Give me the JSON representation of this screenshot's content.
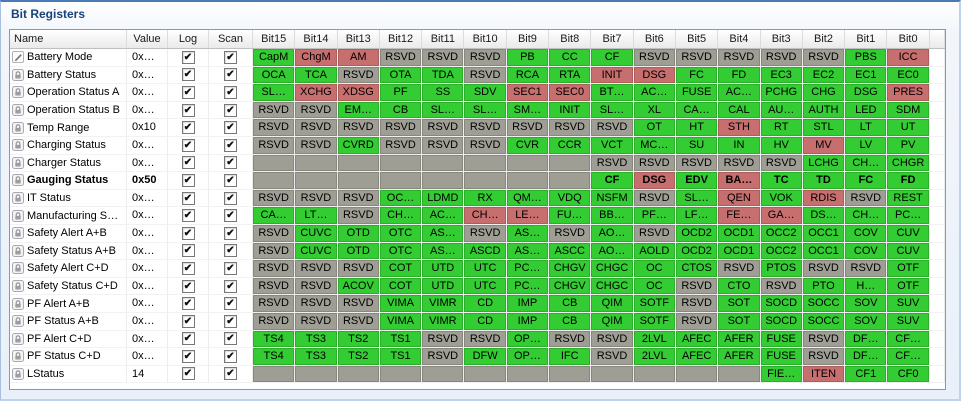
{
  "title": "Bit Registers",
  "colors": {
    "title_text": "#17427a",
    "bit_set": "#33cc33",
    "bit_alert": "#c76e6e",
    "bit_rsvd": "#9e9e94",
    "bit_empty": "#9e9e94"
  },
  "glyphs": {
    "check": "✔"
  },
  "columns": [
    "Name",
    "Value",
    "Log",
    "Scan",
    "Bit15",
    "Bit14",
    "Bit13",
    "Bit12",
    "Bit11",
    "Bit10",
    "Bit9",
    "Bit8",
    "Bit7",
    "Bit6",
    "Bit5",
    "Bit4",
    "Bit3",
    "Bit2",
    "Bit1",
    "Bit0"
  ],
  "rows": [
    {
      "name": "Battery Mode",
      "value": "0x…",
      "log": true,
      "scan": true,
      "icon": "pencil",
      "bold": false,
      "bits": [
        [
          "CapM",
          "g"
        ],
        [
          "ChgM",
          "r"
        ],
        [
          "AM",
          "r"
        ],
        [
          "RSVD",
          "y"
        ],
        [
          "RSVD",
          "y"
        ],
        [
          "RSVD",
          "y"
        ],
        [
          "PB",
          "g"
        ],
        [
          "CC",
          "g"
        ],
        [
          "CF",
          "g"
        ],
        [
          "RSVD",
          "y"
        ],
        [
          "RSVD",
          "y"
        ],
        [
          "RSVD",
          "y"
        ],
        [
          "RSVD",
          "y"
        ],
        [
          "RSVD",
          "y"
        ],
        [
          "PBS",
          "g"
        ],
        [
          "ICC",
          "r"
        ]
      ]
    },
    {
      "name": "Battery Status",
      "value": "0x…",
      "log": true,
      "scan": true,
      "icon": "lock",
      "bold": false,
      "bits": [
        [
          "OCA",
          "g"
        ],
        [
          "TCA",
          "g"
        ],
        [
          "RSVD",
          "y"
        ],
        [
          "OTA",
          "g"
        ],
        [
          "TDA",
          "g"
        ],
        [
          "RSVD",
          "y"
        ],
        [
          "RCA",
          "g"
        ],
        [
          "RTA",
          "g"
        ],
        [
          "INIT",
          "r"
        ],
        [
          "DSG",
          "r"
        ],
        [
          "FC",
          "g"
        ],
        [
          "FD",
          "g"
        ],
        [
          "EC3",
          "g"
        ],
        [
          "EC2",
          "g"
        ],
        [
          "EC1",
          "g"
        ],
        [
          "EC0",
          "g"
        ]
      ]
    },
    {
      "name": "Operation Status A",
      "value": "0x…",
      "log": true,
      "scan": true,
      "icon": "lock",
      "bold": false,
      "bits": [
        [
          "SL…",
          "g"
        ],
        [
          "XCHG",
          "r"
        ],
        [
          "XDSG",
          "r"
        ],
        [
          "PF",
          "g"
        ],
        [
          "SS",
          "g"
        ],
        [
          "SDV",
          "g"
        ],
        [
          "SEC1",
          "r"
        ],
        [
          "SEC0",
          "r"
        ],
        [
          "BT…",
          "g"
        ],
        [
          "AC…",
          "g"
        ],
        [
          "FUSE",
          "g"
        ],
        [
          "AC…",
          "g"
        ],
        [
          "PCHG",
          "g"
        ],
        [
          "CHG",
          "g"
        ],
        [
          "DSG",
          "g"
        ],
        [
          "PRES",
          "r"
        ]
      ]
    },
    {
      "name": "Operation Status B",
      "value": "0x…",
      "log": true,
      "scan": true,
      "icon": "lock",
      "bold": false,
      "bits": [
        [
          "RSVD",
          "y"
        ],
        [
          "RSVD",
          "y"
        ],
        [
          "EM…",
          "g"
        ],
        [
          "CB",
          "g"
        ],
        [
          "SL…",
          "g"
        ],
        [
          "SL…",
          "g"
        ],
        [
          "SM…",
          "g"
        ],
        [
          "INIT",
          "g"
        ],
        [
          "SL…",
          "g"
        ],
        [
          "XL",
          "g"
        ],
        [
          "CA…",
          "g"
        ],
        [
          "CAL",
          "g"
        ],
        [
          "AU…",
          "g"
        ],
        [
          "AUTH",
          "g"
        ],
        [
          "LED",
          "g"
        ],
        [
          "SDM",
          "g"
        ]
      ]
    },
    {
      "name": "Temp Range",
      "value": "0x10",
      "log": true,
      "scan": true,
      "icon": "lock",
      "bold": false,
      "bits": [
        [
          "RSVD",
          "y"
        ],
        [
          "RSVD",
          "y"
        ],
        [
          "RSVD",
          "y"
        ],
        [
          "RSVD",
          "y"
        ],
        [
          "RSVD",
          "y"
        ],
        [
          "RSVD",
          "y"
        ],
        [
          "RSVD",
          "y"
        ],
        [
          "RSVD",
          "y"
        ],
        [
          "RSVD",
          "y"
        ],
        [
          "OT",
          "g"
        ],
        [
          "HT",
          "g"
        ],
        [
          "STH",
          "r"
        ],
        [
          "RT",
          "g"
        ],
        [
          "STL",
          "g"
        ],
        [
          "LT",
          "g"
        ],
        [
          "UT",
          "g"
        ]
      ]
    },
    {
      "name": "Charging Status",
      "value": "0x…",
      "log": true,
      "scan": true,
      "icon": "lock",
      "bold": false,
      "bits": [
        [
          "RSVD",
          "y"
        ],
        [
          "RSVD",
          "y"
        ],
        [
          "CVRD",
          "g"
        ],
        [
          "RSVD",
          "y"
        ],
        [
          "RSVD",
          "y"
        ],
        [
          "RSVD",
          "y"
        ],
        [
          "CVR",
          "g"
        ],
        [
          "CCR",
          "g"
        ],
        [
          "VCT",
          "g"
        ],
        [
          "MC…",
          "g"
        ],
        [
          "SU",
          "g"
        ],
        [
          "IN",
          "g"
        ],
        [
          "HV",
          "g"
        ],
        [
          "MV",
          "r"
        ],
        [
          "LV",
          "g"
        ],
        [
          "PV",
          "g"
        ]
      ]
    },
    {
      "name": "Charger Status",
      "value": "0x…",
      "log": true,
      "scan": true,
      "icon": "lock",
      "bold": false,
      "bits": [
        [
          "",
          "e"
        ],
        [
          "",
          "e"
        ],
        [
          "",
          "e"
        ],
        [
          "",
          "e"
        ],
        [
          "",
          "e"
        ],
        [
          "",
          "e"
        ],
        [
          "",
          "e"
        ],
        [
          "",
          "e"
        ],
        [
          "RSVD",
          "y"
        ],
        [
          "RSVD",
          "y"
        ],
        [
          "RSVD",
          "y"
        ],
        [
          "RSVD",
          "y"
        ],
        [
          "RSVD",
          "y"
        ],
        [
          "LCHG",
          "g"
        ],
        [
          "CH…",
          "g"
        ],
        [
          "CHGR",
          "g"
        ]
      ]
    },
    {
      "name": "Gauging Status",
      "value": "0x50",
      "log": true,
      "scan": true,
      "icon": "lock",
      "bold": true,
      "bits": [
        [
          "",
          "e"
        ],
        [
          "",
          "e"
        ],
        [
          "",
          "e"
        ],
        [
          "",
          "e"
        ],
        [
          "",
          "e"
        ],
        [
          "",
          "e"
        ],
        [
          "",
          "e"
        ],
        [
          "",
          "e"
        ],
        [
          "CF",
          "g"
        ],
        [
          "DSG",
          "r"
        ],
        [
          "EDV",
          "g"
        ],
        [
          "BA…",
          "r"
        ],
        [
          "TC",
          "g"
        ],
        [
          "TD",
          "g"
        ],
        [
          "FC",
          "g"
        ],
        [
          "FD",
          "g"
        ]
      ]
    },
    {
      "name": "IT Status",
      "value": "0x…",
      "log": true,
      "scan": true,
      "icon": "lock",
      "bold": false,
      "bits": [
        [
          "RSVD",
          "y"
        ],
        [
          "RSVD",
          "y"
        ],
        [
          "RSVD",
          "y"
        ],
        [
          "OC…",
          "g"
        ],
        [
          "LDMD",
          "g"
        ],
        [
          "RX",
          "g"
        ],
        [
          "QM…",
          "g"
        ],
        [
          "VDQ",
          "g"
        ],
        [
          "NSFM",
          "g"
        ],
        [
          "RSVD",
          "y"
        ],
        [
          "SL…",
          "g"
        ],
        [
          "QEN",
          "r"
        ],
        [
          "VOK",
          "g"
        ],
        [
          "RDIS",
          "r"
        ],
        [
          "RSVD",
          "y"
        ],
        [
          "REST",
          "g"
        ]
      ]
    },
    {
      "name": "Manufacturing S…",
      "value": "0x…",
      "log": true,
      "scan": true,
      "icon": "lock",
      "bold": false,
      "bits": [
        [
          "CA…",
          "g"
        ],
        [
          "LT…",
          "g"
        ],
        [
          "RSVD",
          "y"
        ],
        [
          "CH…",
          "g"
        ],
        [
          "AC…",
          "g"
        ],
        [
          "CH…",
          "r"
        ],
        [
          "LE…",
          "r"
        ],
        [
          "FU…",
          "g"
        ],
        [
          "BB…",
          "g"
        ],
        [
          "PF…",
          "g"
        ],
        [
          "LF…",
          "g"
        ],
        [
          "FE…",
          "r"
        ],
        [
          "GA…",
          "r"
        ],
        [
          "DS…",
          "g"
        ],
        [
          "CH…",
          "g"
        ],
        [
          "PC…",
          "g"
        ]
      ]
    },
    {
      "name": "Safety Alert A+B",
      "value": "0x…",
      "log": true,
      "scan": true,
      "icon": "lock",
      "bold": false,
      "bits": [
        [
          "RSVD",
          "y"
        ],
        [
          "CUVC",
          "g"
        ],
        [
          "OTD",
          "g"
        ],
        [
          "OTC",
          "g"
        ],
        [
          "AS…",
          "g"
        ],
        [
          "RSVD",
          "y"
        ],
        [
          "AS…",
          "g"
        ],
        [
          "RSVD",
          "y"
        ],
        [
          "AO…",
          "g"
        ],
        [
          "RSVD",
          "y"
        ],
        [
          "OCD2",
          "g"
        ],
        [
          "OCD1",
          "g"
        ],
        [
          "OCC2",
          "g"
        ],
        [
          "OCC1",
          "g"
        ],
        [
          "COV",
          "g"
        ],
        [
          "CUV",
          "g"
        ]
      ]
    },
    {
      "name": "Safety Status A+B",
      "value": "0x…",
      "log": true,
      "scan": true,
      "icon": "lock",
      "bold": false,
      "bits": [
        [
          "RSVD",
          "y"
        ],
        [
          "CUVC",
          "g"
        ],
        [
          "OTD",
          "g"
        ],
        [
          "OTC",
          "g"
        ],
        [
          "AS…",
          "g"
        ],
        [
          "ASCD",
          "g"
        ],
        [
          "AS…",
          "g"
        ],
        [
          "ASCC",
          "g"
        ],
        [
          "AO…",
          "g"
        ],
        [
          "AOLD",
          "g"
        ],
        [
          "OCD2",
          "g"
        ],
        [
          "OCD1",
          "g"
        ],
        [
          "OCC2",
          "g"
        ],
        [
          "OCC1",
          "g"
        ],
        [
          "COV",
          "g"
        ],
        [
          "CUV",
          "g"
        ]
      ]
    },
    {
      "name": "Safety Alert C+D",
      "value": "0x…",
      "log": true,
      "scan": true,
      "icon": "lock",
      "bold": false,
      "bits": [
        [
          "RSVD",
          "y"
        ],
        [
          "RSVD",
          "y"
        ],
        [
          "RSVD",
          "y"
        ],
        [
          "COT",
          "g"
        ],
        [
          "UTD",
          "g"
        ],
        [
          "UTC",
          "g"
        ],
        [
          "PC…",
          "g"
        ],
        [
          "CHGV",
          "g"
        ],
        [
          "CHGC",
          "g"
        ],
        [
          "OC",
          "g"
        ],
        [
          "CTOS",
          "g"
        ],
        [
          "RSVD",
          "y"
        ],
        [
          "PTOS",
          "g"
        ],
        [
          "RSVD",
          "y"
        ],
        [
          "RSVD",
          "y"
        ],
        [
          "OTF",
          "g"
        ]
      ]
    },
    {
      "name": "Safety Status C+D",
      "value": "0x…",
      "log": true,
      "scan": true,
      "icon": "lock",
      "bold": false,
      "bits": [
        [
          "RSVD",
          "y"
        ],
        [
          "RSVD",
          "y"
        ],
        [
          "ACOV",
          "g"
        ],
        [
          "COT",
          "g"
        ],
        [
          "UTD",
          "g"
        ],
        [
          "UTC",
          "g"
        ],
        [
          "PC…",
          "g"
        ],
        [
          "CHGV",
          "g"
        ],
        [
          "CHGC",
          "g"
        ],
        [
          "OC",
          "g"
        ],
        [
          "RSVD",
          "y"
        ],
        [
          "CTO",
          "g"
        ],
        [
          "RSVD",
          "y"
        ],
        [
          "PTO",
          "g"
        ],
        [
          "H…",
          "g"
        ],
        [
          "OTF",
          "g"
        ]
      ]
    },
    {
      "name": "PF Alert A+B",
      "value": "0x…",
      "log": true,
      "scan": true,
      "icon": "lock",
      "bold": false,
      "bits": [
        [
          "RSVD",
          "y"
        ],
        [
          "RSVD",
          "y"
        ],
        [
          "RSVD",
          "y"
        ],
        [
          "VIMA",
          "g"
        ],
        [
          "VIMR",
          "g"
        ],
        [
          "CD",
          "g"
        ],
        [
          "IMP",
          "g"
        ],
        [
          "CB",
          "g"
        ],
        [
          "QIM",
          "g"
        ],
        [
          "SOTF",
          "g"
        ],
        [
          "RSVD",
          "y"
        ],
        [
          "SOT",
          "g"
        ],
        [
          "SOCD",
          "g"
        ],
        [
          "SOCC",
          "g"
        ],
        [
          "SOV",
          "g"
        ],
        [
          "SUV",
          "g"
        ]
      ]
    },
    {
      "name": "PF Status A+B",
      "value": "0x…",
      "log": true,
      "scan": true,
      "icon": "lock",
      "bold": false,
      "bits": [
        [
          "RSVD",
          "y"
        ],
        [
          "RSVD",
          "y"
        ],
        [
          "RSVD",
          "y"
        ],
        [
          "VIMA",
          "g"
        ],
        [
          "VIMR",
          "g"
        ],
        [
          "CD",
          "g"
        ],
        [
          "IMP",
          "g"
        ],
        [
          "CB",
          "g"
        ],
        [
          "QIM",
          "g"
        ],
        [
          "SOTF",
          "g"
        ],
        [
          "RSVD",
          "y"
        ],
        [
          "SOT",
          "g"
        ],
        [
          "SOCD",
          "g"
        ],
        [
          "SOCC",
          "g"
        ],
        [
          "SOV",
          "g"
        ],
        [
          "SUV",
          "g"
        ]
      ]
    },
    {
      "name": "PF Alert C+D",
      "value": "0x…",
      "log": true,
      "scan": true,
      "icon": "lock",
      "bold": false,
      "bits": [
        [
          "TS4",
          "g"
        ],
        [
          "TS3",
          "g"
        ],
        [
          "TS2",
          "g"
        ],
        [
          "TS1",
          "g"
        ],
        [
          "RSVD",
          "y"
        ],
        [
          "RSVD",
          "y"
        ],
        [
          "OP…",
          "g"
        ],
        [
          "RSVD",
          "y"
        ],
        [
          "RSVD",
          "y"
        ],
        [
          "2LVL",
          "g"
        ],
        [
          "AFEC",
          "g"
        ],
        [
          "AFER",
          "g"
        ],
        [
          "FUSE",
          "g"
        ],
        [
          "RSVD",
          "y"
        ],
        [
          "DF…",
          "g"
        ],
        [
          "CF…",
          "g"
        ]
      ]
    },
    {
      "name": "PF Status C+D",
      "value": "0x…",
      "log": true,
      "scan": true,
      "icon": "lock",
      "bold": false,
      "bits": [
        [
          "TS4",
          "g"
        ],
        [
          "TS3",
          "g"
        ],
        [
          "TS2",
          "g"
        ],
        [
          "TS1",
          "g"
        ],
        [
          "RSVD",
          "y"
        ],
        [
          "DFW",
          "g"
        ],
        [
          "OP…",
          "g"
        ],
        [
          "IFC",
          "g"
        ],
        [
          "RSVD",
          "y"
        ],
        [
          "2LVL",
          "g"
        ],
        [
          "AFEC",
          "g"
        ],
        [
          "AFER",
          "g"
        ],
        [
          "FUSE",
          "g"
        ],
        [
          "RSVD",
          "y"
        ],
        [
          "DF…",
          "g"
        ],
        [
          "CF…",
          "g"
        ]
      ]
    },
    {
      "name": "LStatus",
      "value": "14",
      "log": true,
      "scan": true,
      "icon": "lock",
      "bold": false,
      "bits": [
        [
          "",
          "e"
        ],
        [
          "",
          "e"
        ],
        [
          "",
          "e"
        ],
        [
          "",
          "e"
        ],
        [
          "",
          "e"
        ],
        [
          "",
          "e"
        ],
        [
          "",
          "e"
        ],
        [
          "",
          "e"
        ],
        [
          "",
          "e"
        ],
        [
          "",
          "e"
        ],
        [
          "",
          "e"
        ],
        [
          "",
          "e"
        ],
        [
          "FIE…",
          "g"
        ],
        [
          "ITEN",
          "r"
        ],
        [
          "CF1",
          "g"
        ],
        [
          "CF0",
          "g"
        ]
      ]
    }
  ]
}
